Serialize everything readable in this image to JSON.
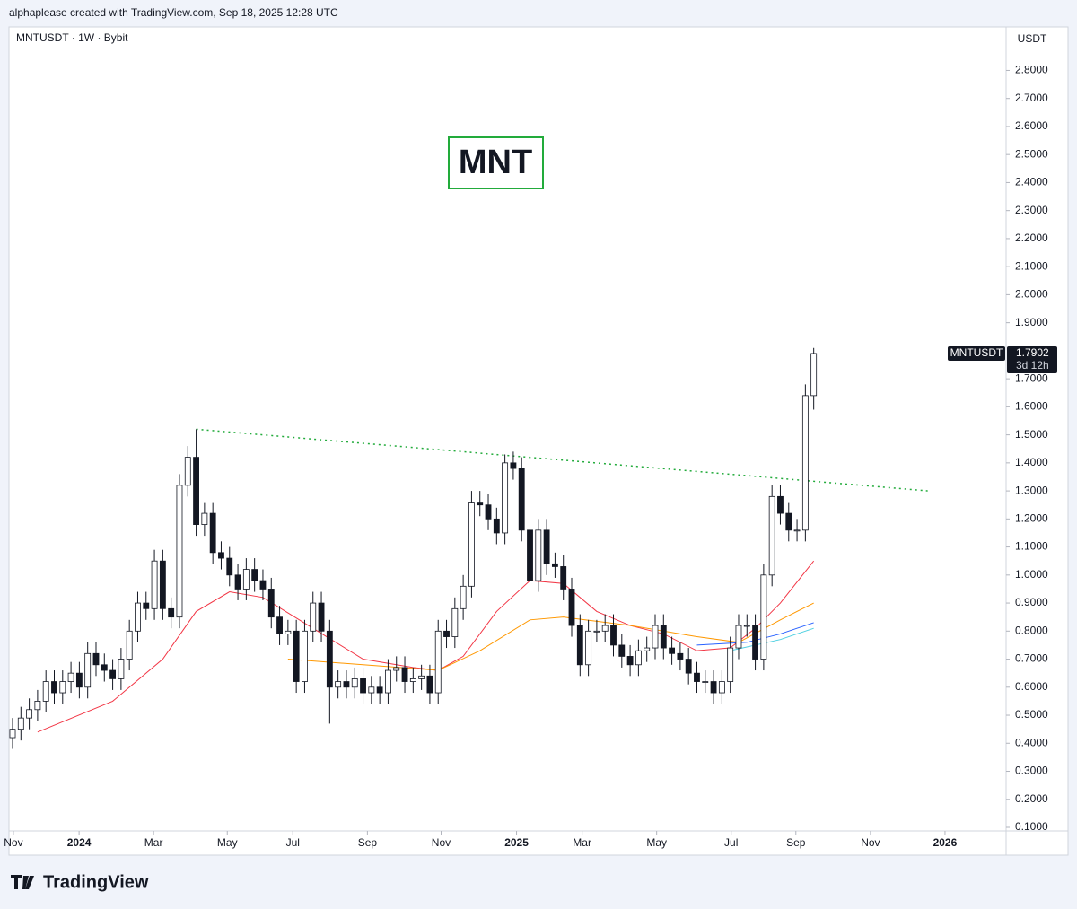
{
  "header": "alphaplease created with TradingView.com, Sep 18, 2025 12:28 UTC",
  "footer": "TradingView",
  "chart_data": {
    "type": "candlestick",
    "title": "MNTUSDT · 1W · Bybit",
    "annotation": "MNT",
    "currency": "USDT",
    "price_tag": {
      "symbol": "MNTUSDT",
      "countdown": "3d 12h"
    },
    "up_color": "#ffffff",
    "down_color": "#131722",
    "outline": "#131722",
    "open": [
      0.42,
      0.45,
      0.49,
      0.52,
      0.55,
      0.62,
      0.58,
      0.62,
      0.65,
      0.6,
      0.72,
      0.68,
      0.66,
      0.63,
      0.7,
      0.8,
      0.9,
      0.88,
      1.05,
      0.88,
      0.85,
      1.32,
      1.42,
      1.18,
      1.22,
      1.08,
      1.06,
      1.0,
      0.95,
      1.02,
      0.98,
      0.95,
      0.85,
      0.79,
      0.8,
      0.62,
      0.8,
      0.9,
      0.8,
      0.6,
      0.62,
      0.6,
      0.63,
      0.58,
      0.6,
      0.58,
      0.66,
      0.67,
      0.62,
      0.63,
      0.64,
      0.58,
      0.8,
      0.78,
      0.88,
      0.96,
      1.26,
      1.25,
      1.2,
      1.15,
      1.4,
      1.38,
      1.16,
      0.98,
      1.16,
      1.04,
      1.03,
      0.95,
      0.82,
      0.68,
      0.8,
      0.8,
      0.82,
      0.75,
      0.71,
      0.68,
      0.73,
      0.74,
      0.82,
      0.74,
      0.72,
      0.7,
      0.65,
      0.62,
      0.62,
      0.58,
      0.62,
      0.74,
      0.82,
      0.82,
      0.7,
      1.0,
      1.28,
      1.22,
      1.16,
      1.16,
      1.64
    ],
    "high": [
      0.49,
      0.53,
      0.56,
      0.59,
      0.66,
      0.66,
      0.66,
      0.69,
      0.69,
      0.76,
      0.76,
      0.72,
      0.7,
      0.74,
      0.84,
      0.94,
      0.94,
      1.09,
      1.09,
      0.92,
      1.36,
      1.46,
      1.52,
      1.26,
      1.26,
      1.12,
      1.1,
      1.04,
      1.06,
      1.06,
      1.02,
      0.99,
      0.89,
      0.84,
      0.84,
      0.84,
      0.94,
      0.94,
      0.84,
      0.66,
      0.66,
      0.67,
      0.67,
      0.64,
      0.64,
      0.7,
      0.71,
      0.71,
      0.67,
      0.68,
      0.68,
      0.84,
      0.84,
      0.92,
      1.0,
      1.3,
      1.3,
      1.29,
      1.24,
      1.43,
      1.44,
      1.42,
      1.2,
      1.2,
      1.2,
      1.08,
      1.07,
      0.99,
      0.86,
      0.84,
      0.84,
      0.86,
      0.86,
      0.79,
      0.75,
      0.77,
      0.78,
      0.86,
      0.86,
      0.78,
      0.76,
      0.74,
      0.69,
      0.66,
      0.66,
      0.66,
      0.78,
      0.86,
      0.86,
      0.86,
      1.04,
      1.32,
      1.32,
      1.26,
      1.2,
      1.68,
      1.81
    ],
    "low": [
      0.38,
      0.41,
      0.45,
      0.48,
      0.51,
      0.54,
      0.54,
      0.58,
      0.56,
      0.56,
      0.64,
      0.62,
      0.59,
      0.59,
      0.66,
      0.76,
      0.84,
      0.84,
      0.84,
      0.81,
      0.81,
      1.28,
      1.14,
      1.14,
      1.04,
      1.02,
      0.96,
      0.91,
      0.91,
      0.94,
      0.91,
      0.81,
      0.75,
      0.75,
      0.58,
      0.58,
      0.76,
      0.76,
      0.47,
      0.56,
      0.56,
      0.56,
      0.54,
      0.54,
      0.54,
      0.54,
      0.62,
      0.58,
      0.58,
      0.59,
      0.54,
      0.54,
      0.74,
      0.74,
      0.84,
      0.92,
      1.21,
      1.16,
      1.11,
      1.11,
      1.34,
      1.12,
      0.94,
      0.94,
      1.0,
      0.99,
      0.91,
      0.78,
      0.64,
      0.64,
      0.76,
      0.76,
      0.71,
      0.67,
      0.64,
      0.64,
      0.69,
      0.7,
      0.7,
      0.68,
      0.66,
      0.61,
      0.58,
      0.58,
      0.54,
      0.54,
      0.58,
      0.7,
      0.78,
      0.66,
      0.66,
      0.96,
      1.18,
      1.12,
      1.12,
      1.12,
      1.59
    ],
    "close": [
      0.45,
      0.49,
      0.52,
      0.55,
      0.62,
      0.58,
      0.62,
      0.65,
      0.6,
      0.72,
      0.68,
      0.66,
      0.63,
      0.7,
      0.8,
      0.9,
      0.88,
      1.05,
      0.88,
      0.85,
      1.32,
      1.42,
      1.18,
      1.22,
      1.08,
      1.06,
      1.0,
      0.95,
      1.02,
      0.98,
      0.95,
      0.85,
      0.79,
      0.8,
      0.62,
      0.8,
      0.9,
      0.8,
      0.6,
      0.62,
      0.6,
      0.63,
      0.58,
      0.6,
      0.58,
      0.66,
      0.67,
      0.62,
      0.63,
      0.64,
      0.58,
      0.8,
      0.78,
      0.88,
      0.96,
      1.26,
      1.25,
      1.2,
      1.15,
      1.4,
      1.38,
      1.16,
      0.98,
      1.16,
      1.04,
      1.03,
      0.95,
      0.82,
      0.68,
      0.8,
      0.8,
      0.82,
      0.75,
      0.71,
      0.68,
      0.73,
      0.74,
      0.82,
      0.74,
      0.72,
      0.7,
      0.65,
      0.62,
      0.62,
      0.58,
      0.62,
      0.74,
      0.82,
      0.82,
      0.7,
      1.0,
      1.28,
      1.22,
      1.16,
      1.16,
      1.64,
      1.7902
    ],
    "series": [
      {
        "color": "#f23645",
        "x": [
          3,
          12,
          18,
          22,
          26,
          30,
          36,
          42,
          48,
          51,
          54,
          58,
          62,
          66,
          70,
          74,
          78,
          82,
          86,
          89,
          92,
          96
        ],
        "values": [
          0.44,
          0.55,
          0.7,
          0.87,
          0.94,
          0.92,
          0.81,
          0.7,
          0.67,
          0.66,
          0.71,
          0.87,
          0.98,
          0.97,
          0.87,
          0.82,
          0.79,
          0.73,
          0.74,
          0.81,
          0.9,
          1.05
        ]
      },
      {
        "color": "#ff9800",
        "x": [
          33,
          42,
          51,
          56,
          62,
          66,
          74,
          82,
          87,
          92,
          96
        ],
        "values": [
          0.7,
          0.68,
          0.66,
          0.73,
          0.84,
          0.85,
          0.82,
          0.78,
          0.76,
          0.84,
          0.9
        ]
      },
      {
        "color": "#2962ff",
        "x": [
          82,
          88,
          92,
          96
        ],
        "values": [
          0.75,
          0.76,
          0.79,
          0.83
        ]
      },
      {
        "color": "#4dd0e1",
        "x": [
          86,
          92,
          96
        ],
        "values": [
          0.73,
          0.77,
          0.81
        ]
      }
    ],
    "trendline": {
      "color": "#22ab3b",
      "x": [
        22,
        109.7
      ],
      "values": [
        1.52,
        1.3
      ]
    },
    "xlim": [
      -0.43,
      119.05
    ],
    "xticks": [
      {
        "value": 0.1,
        "label": "Nov"
      },
      {
        "value": 7.97,
        "label": "2024"
      },
      {
        "value": 16.9,
        "label": "Mar"
      },
      {
        "value": 25.73,
        "label": "May"
      },
      {
        "value": 33.58,
        "label": "Jul"
      },
      {
        "value": 42.52,
        "label": "Sep"
      },
      {
        "value": 51.35,
        "label": "Nov"
      },
      {
        "value": 60.39,
        "label": "2025"
      },
      {
        "value": 68.25,
        "label": "Mar"
      },
      {
        "value": 77.18,
        "label": "May"
      },
      {
        "value": 86.11,
        "label": "Jul"
      },
      {
        "value": 93.86,
        "label": "Sep"
      },
      {
        "value": 102.8,
        "label": "Nov"
      },
      {
        "value": 111.73,
        "label": "2026"
      }
    ],
    "ylim": [
      0.0872,
      2.9551
    ],
    "yticks": [
      {
        "value": 0.1,
        "label": "0.1000"
      },
      {
        "value": 0.2,
        "label": "0.2000"
      },
      {
        "value": 0.3,
        "label": "0.3000"
      },
      {
        "value": 0.4,
        "label": "0.4000"
      },
      {
        "value": 0.5,
        "label": "0.5000"
      },
      {
        "value": 0.6,
        "label": "0.6000"
      },
      {
        "value": 0.7,
        "label": "0.7000"
      },
      {
        "value": 0.8,
        "label": "0.8000"
      },
      {
        "value": 0.9,
        "label": "0.9000"
      },
      {
        "value": 1.0,
        "label": "1.0000"
      },
      {
        "value": 1.1,
        "label": "1.1000"
      },
      {
        "value": 1.2,
        "label": "1.2000"
      },
      {
        "value": 1.3,
        "label": "1.3000"
      },
      {
        "value": 1.4,
        "label": "1.4000"
      },
      {
        "value": 1.5,
        "label": "1.5000"
      },
      {
        "value": 1.6,
        "label": "1.6000"
      },
      {
        "value": 1.7,
        "label": "1.7000"
      },
      {
        "value": 1.9,
        "label": "1.9000"
      },
      {
        "value": 2.0,
        "label": "2.0000"
      },
      {
        "value": 2.1,
        "label": "2.1000"
      },
      {
        "value": 2.2,
        "label": "2.2000"
      },
      {
        "value": 2.3,
        "label": "2.3000"
      },
      {
        "value": 2.4,
        "label": "2.4000"
      },
      {
        "value": 2.5,
        "label": "2.5000"
      },
      {
        "value": 2.6,
        "label": "2.6000"
      },
      {
        "value": 2.7,
        "label": "2.7000"
      },
      {
        "value": 2.8,
        "label": "2.8000"
      }
    ]
  }
}
